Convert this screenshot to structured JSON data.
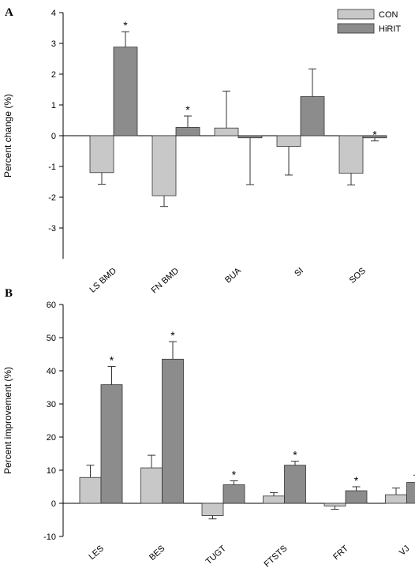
{
  "chart_data": [
    {
      "panel": "A",
      "type": "bar",
      "ylabel": "Percent change (%)",
      "ylim": [
        -4,
        4
      ],
      "yticks": [
        -3,
        -2,
        -1,
        0,
        1,
        2,
        3,
        4
      ],
      "categories": [
        "LS BMD",
        "FN BMD",
        "BUA",
        "SI",
        "SOS"
      ],
      "series": [
        {
          "name": "CON",
          "color": "#c8c8c8",
          "values": [
            -1.2,
            -1.95,
            0.25,
            -0.35,
            -1.22
          ],
          "errors": [
            0.38,
            0.35,
            1.2,
            0.93,
            0.38
          ]
        },
        {
          "name": "HiRIT",
          "color": "#8c8c8c",
          "values": [
            2.88,
            0.27,
            -0.07,
            1.27,
            -0.07
          ],
          "errors": [
            0.5,
            0.37,
            1.52,
            0.9,
            0.1
          ]
        }
      ],
      "significance": {
        "HiRIT": [
          "*",
          "*",
          "",
          "",
          "*"
        ]
      },
      "legend": "top-right",
      "grid": false
    },
    {
      "panel": "B",
      "type": "bar",
      "ylabel": "Percent improvement (%)",
      "ylim": [
        -10,
        60
      ],
      "yticks": [
        -10,
        0,
        10,
        20,
        30,
        40,
        50,
        60
      ],
      "categories": [
        "LES",
        "BES",
        "TUGT",
        "FTSTS",
        "FRT",
        "VJ"
      ],
      "series": [
        {
          "name": "CON",
          "color": "#c8c8c8",
          "values": [
            7.8,
            10.7,
            -3.7,
            2.2,
            -0.8,
            2.6
          ],
          "errors": [
            3.7,
            3.8,
            1.0,
            1.0,
            1.0,
            2.0
          ]
        },
        {
          "name": "HiRIT",
          "color": "#8c8c8c",
          "values": [
            35.8,
            43.5,
            5.6,
            11.5,
            3.8,
            6.3
          ],
          "errors": [
            5.5,
            5.3,
            1.2,
            1.2,
            1.2,
            2.2
          ]
        }
      ],
      "significance": {
        "HiRIT": [
          "*",
          "*",
          "*",
          "*",
          "*",
          "*"
        ]
      },
      "grid": false
    }
  ]
}
